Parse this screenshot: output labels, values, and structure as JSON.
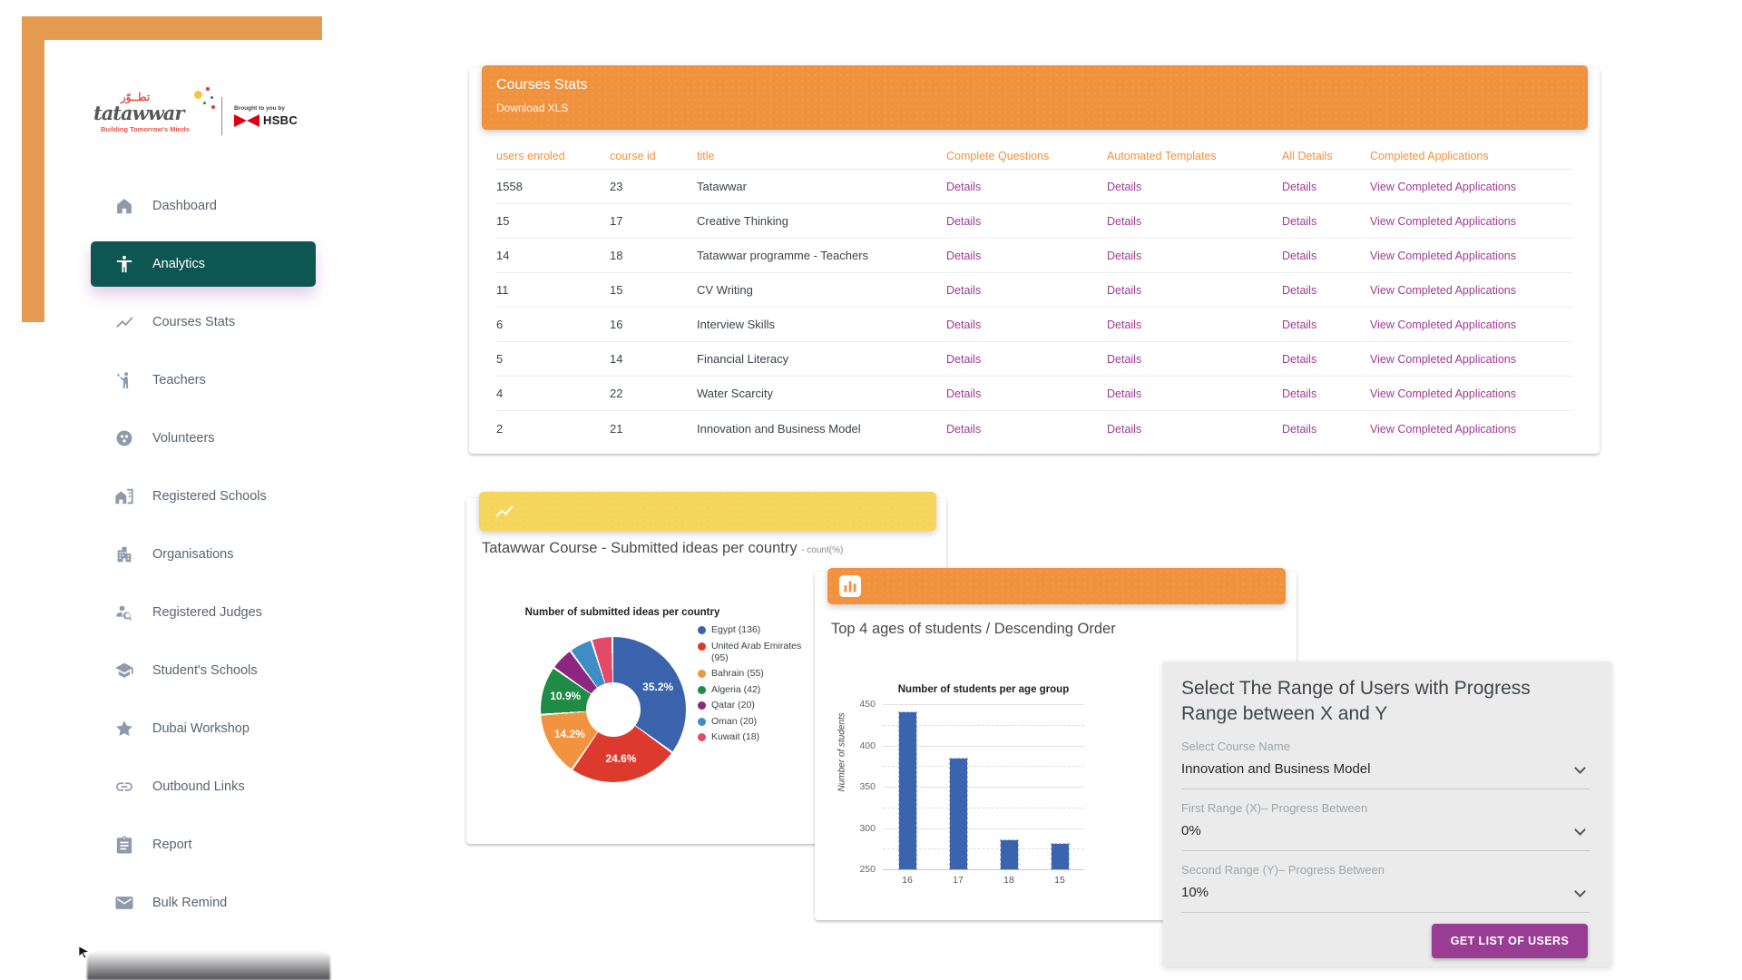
{
  "brand": {
    "arabic": "تطــوّر",
    "name": "tatawwar",
    "tagline": "Building Tomorrow's Minds",
    "partner_note": "Brought to you by",
    "partner_name": "HSBC",
    "accent_color": "#E49B51"
  },
  "sidebar": {
    "items": [
      {
        "label": "Dashboard",
        "icon": "home",
        "active": false
      },
      {
        "label": "Analytics",
        "icon": "accessibility",
        "active": true
      },
      {
        "label": "Courses Stats",
        "icon": "show-chart",
        "active": false
      },
      {
        "label": "Teachers",
        "icon": "wave-person",
        "active": false
      },
      {
        "label": "Volunteers",
        "icon": "circle-dots",
        "active": false
      },
      {
        "label": "Registered Schools",
        "icon": "home-work",
        "active": false
      },
      {
        "label": "Organisations",
        "icon": "apartment",
        "active": false
      },
      {
        "label": "Registered Judges",
        "icon": "person-search",
        "active": false
      },
      {
        "label": "Student's Schools",
        "icon": "school",
        "active": false
      },
      {
        "label": "Dubai Workshop",
        "icon": "star",
        "active": false
      },
      {
        "label": "Outbound Links",
        "icon": "link",
        "active": false
      },
      {
        "label": "Report",
        "icon": "assignment",
        "active": false
      },
      {
        "label": "Bulk Remind",
        "icon": "email",
        "active": false
      }
    ],
    "active_color": "#0D5651"
  },
  "courses_card": {
    "title": "Courses Stats",
    "download_label": "Download XLS",
    "header_color": "#F0923D",
    "columns": [
      "users enroled",
      "course id",
      "title",
      "Complete Questions",
      "Automated Templates",
      "All Details",
      "Completed Applications"
    ],
    "link_labels": {
      "details": "Details",
      "view_completed": "View Completed Applications"
    },
    "rows": [
      {
        "users_enroled": "1558",
        "course_id": "23",
        "title": "Tatawwar"
      },
      {
        "users_enroled": "15",
        "course_id": "17",
        "title": "Creative Thinking"
      },
      {
        "users_enroled": "14",
        "course_id": "18",
        "title": "Tatawwar programme - Teachers"
      },
      {
        "users_enroled": "11",
        "course_id": "15",
        "title": "CV Writing"
      },
      {
        "users_enroled": "6",
        "course_id": "16",
        "title": "Interview Skills"
      },
      {
        "users_enroled": "5",
        "course_id": "14",
        "title": "Financial Literacy"
      },
      {
        "users_enroled": "4",
        "course_id": "22",
        "title": "Water Scarcity"
      },
      {
        "users_enroled": "2",
        "course_id": "21",
        "title": "Innovation and Business Model"
      }
    ],
    "link_color": "#A03A94",
    "header_text_color": "#F2923E"
  },
  "pie_card": {
    "title": "Tatawwar Course - Submitted ideas per country",
    "title_suffix": "- count(%)",
    "header_color": "#F5D55C"
  },
  "bar_card": {
    "title": "Top 4 ages of students / Descending Order",
    "header_color": "#F0923D"
  },
  "range_panel": {
    "title": "Select The Range of Users with Progress Range between X and Y",
    "fields": [
      {
        "label": "Select Course Name",
        "value": "Innovation and Business Model"
      },
      {
        "label": "First Range (X)– Progress Between",
        "value": "0%"
      },
      {
        "label": "Second Range (Y)– Progress Between",
        "value": "10%"
      }
    ],
    "button_label": "GET LIST OF USERS",
    "button_color": "#993D94",
    "background_color": "#EBEBEB"
  },
  "chart_data": [
    {
      "type": "pie",
      "donut": true,
      "title": "Number of submitted ideas per country",
      "labels": [
        "Egypt",
        "United Arab Emirates",
        "Bahrain",
        "Algeria",
        "Qatar",
        "Oman",
        "Kuwait"
      ],
      "values": [
        136,
        95,
        55,
        42,
        20,
        20,
        18
      ],
      "percent_labels": [
        "35.2%",
        "24.6%",
        "14.2%",
        "10.9%",
        "5.2%",
        "5.2%",
        "4.7%"
      ],
      "percent_labels_shown": 4,
      "colors": [
        "#3A63AC",
        "#DC3A2D",
        "#F2943F",
        "#1F8B44",
        "#8C2680",
        "#3E8EC5",
        "#E24A68"
      ],
      "legend_position": "right"
    },
    {
      "type": "bar",
      "title": "Number of students per age group",
      "ylabel": "Number of students",
      "categories": [
        "16",
        "17",
        "18",
        "15"
      ],
      "values": [
        440,
        384,
        285,
        281
      ],
      "ylim": [
        250,
        450
      ],
      "yticks": [
        250,
        300,
        350,
        400,
        450
      ],
      "minor_ticks": [
        275,
        325,
        375,
        425
      ],
      "bar_color": "#3A64AD",
      "grid": true
    }
  ]
}
